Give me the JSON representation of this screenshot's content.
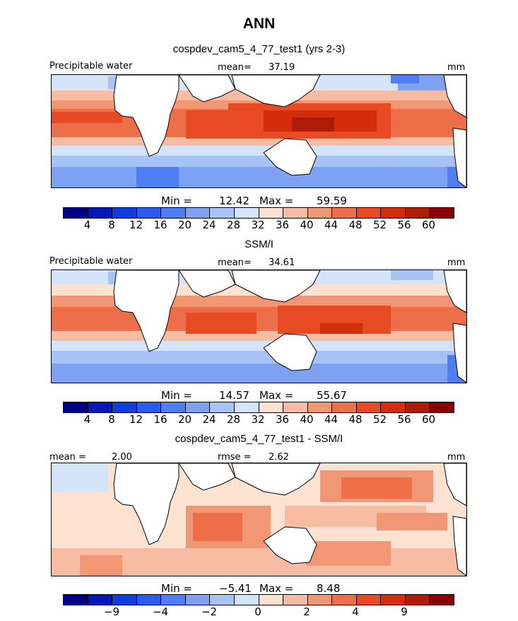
{
  "title": "ANN",
  "panels": [
    {
      "title": "cospdev_cam5_4_77_test1 (yrs 2-3)",
      "left_label": "Precipitable water",
      "mean_label": "mean=",
      "mean_value": "37.19",
      "units": "mm",
      "min_label": "Min =",
      "min_value": "12.42",
      "max_label": "Max =",
      "max_value": "59.59",
      "ticks": [
        "4",
        "8",
        "12",
        "16",
        "20",
        "24",
        "28",
        "32",
        "36",
        "40",
        "44",
        "48",
        "52",
        "56",
        "60"
      ]
    },
    {
      "title": "SSM/I",
      "left_label": "Precipitable water",
      "mean_label": "mean=",
      "mean_value": "34.61",
      "units": "mm",
      "min_label": "Min =",
      "min_value": "14.57",
      "max_label": "Max =",
      "max_value": "55.67",
      "ticks": [
        "4",
        "8",
        "12",
        "16",
        "20",
        "24",
        "28",
        "32",
        "36",
        "40",
        "44",
        "48",
        "52",
        "56",
        "60"
      ]
    },
    {
      "title": "cospdev_cam5_4_77_test1 - SSM/I",
      "mean_label": "mean =",
      "mean_value": "2.00",
      "rmse_label": "rmse =",
      "rmse_value": "2.62",
      "units": "mm",
      "min_label": "Min =",
      "min_value": "−5.41",
      "max_label": "Max =",
      "max_value": "8.48",
      "ticks": [
        "−9",
        "−4",
        "−2",
        "0",
        "2",
        "4",
        "9"
      ]
    }
  ],
  "colors": [
    "#000088",
    "#0019b8",
    "#0e3de0",
    "#2a5cf0",
    "#4f7ef2",
    "#7ea2f3",
    "#a7c3f6",
    "#d4e4f9",
    "#fde2d2",
    "#f8bca2",
    "#f29774",
    "#ee6e49",
    "#e84a24",
    "#d32d0b",
    "#b01b05",
    "#880000"
  ]
}
